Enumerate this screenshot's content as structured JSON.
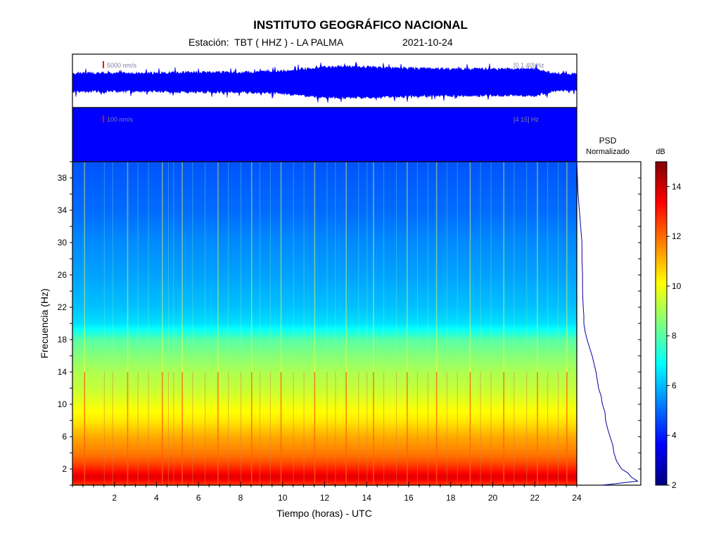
{
  "header": {
    "title": "INSTITUTO GEOGRÁFICO NACIONAL",
    "station_label": "Estación:",
    "station_value": "TBT ( HHZ ) - LA PALMA",
    "date": "2021-10-24"
  },
  "chart_data": [
    {
      "type": "line",
      "panel": "seismogram-broadband",
      "amplitude_scale": "5000 nm/s",
      "band": "[0.1 40] Hz",
      "x": [
        0,
        1,
        2,
        3,
        4,
        5,
        6,
        7,
        8,
        9,
        10,
        11,
        12,
        13,
        14,
        15,
        16,
        17,
        18,
        19,
        20,
        21,
        22,
        23,
        24
      ],
      "series": [
        {
          "values": [
            0.55,
            0.55,
            0.55,
            0.55,
            0.55,
            0.6,
            0.6,
            0.6,
            0.6,
            0.65,
            0.7,
            0.85,
            1.0,
            1.0,
            1.0,
            0.95,
            0.9,
            0.85,
            0.85,
            0.85,
            0.85,
            0.85,
            0.85,
            0.5,
            0.5
          ]
        }
      ]
    },
    {
      "type": "line",
      "panel": "seismogram-filtered",
      "amplitude_scale": "100 nm/s",
      "band": "[4 15] Hz",
      "x": [
        0,
        24
      ],
      "series": [
        {
          "values": [
            1.0,
            1.0
          ]
        }
      ]
    },
    {
      "type": "heatmap",
      "panel": "spectrogram",
      "xlabel": "Tiempo (horas) - UTC",
      "ylabel": "Frecuencia (Hz)",
      "xlim": [
        0,
        24
      ],
      "ylim": [
        0,
        40
      ],
      "x_ticks": [
        "2",
        "4",
        "6",
        "8",
        "10",
        "12",
        "14",
        "16",
        "18",
        "20",
        "22",
        "24"
      ],
      "y_ticks": [
        "2",
        "6",
        "10",
        "14",
        "18",
        "22",
        "26",
        "30",
        "34",
        "38"
      ],
      "profile": {
        "frequency_hz": [
          0,
          1,
          2,
          3,
          4,
          6,
          8,
          10,
          12,
          14,
          16,
          18,
          19,
          20,
          22,
          26,
          30,
          34,
          38,
          40
        ],
        "level_db": [
          12.5,
          13.8,
          13,
          12.3,
          11.8,
          11.2,
          10.4,
          9.9,
          9.4,
          9.1,
          8.6,
          8.0,
          7.2,
          6.5,
          6.1,
          5.7,
          5.4,
          5.0,
          4.8,
          4.7
        ]
      },
      "event_hours": [
        0.55,
        1.5,
        1.9,
        2.6,
        3.1,
        3.6,
        4.25,
        4.55,
        4.8,
        5.2,
        5.7,
        6.3,
        6.9,
        7.4,
        8.0,
        8.5,
        8.9,
        9.4,
        9.9,
        10.5,
        11.0,
        11.5,
        12.1,
        12.5,
        13.0,
        13.6,
        14.0,
        14.3,
        14.8,
        15.4,
        15.9,
        16.4,
        16.9,
        17.3,
        17.8,
        18.3,
        18.9,
        19.4,
        19.9,
        20.5,
        21.0,
        21.6,
        22.1,
        22.6,
        23.1,
        23.5
      ]
    },
    {
      "type": "line",
      "panel": "psd",
      "title": "PSD\nNormalizado",
      "frequency_hz": [
        0,
        0.5,
        1,
        1.5,
        2,
        3,
        4,
        5,
        6,
        7,
        8,
        9,
        10,
        11,
        12,
        13,
        14,
        15,
        16,
        17,
        18,
        19,
        20,
        21,
        22,
        24,
        26,
        28,
        30,
        32,
        34,
        36,
        38,
        40
      ],
      "values": [
        0.4,
        0.95,
        0.85,
        0.8,
        0.7,
        0.62,
        0.58,
        0.56,
        0.52,
        0.48,
        0.45,
        0.44,
        0.4,
        0.38,
        0.34,
        0.32,
        0.3,
        0.27,
        0.24,
        0.2,
        0.16,
        0.13,
        0.11,
        0.11,
        0.1,
        0.09,
        0.09,
        0.08,
        0.08,
        0.06,
        0.04,
        0.02,
        0.01,
        0.0
      ]
    },
    {
      "type": "colorbar",
      "label": "dB",
      "range": [
        2,
        15
      ],
      "ticks": [
        "2",
        "4",
        "6",
        "8",
        "10",
        "12",
        "14"
      ],
      "colors": [
        "#00007f",
        "#0000ff",
        "#007fff",
        "#00ffff",
        "#7fff7f",
        "#ffff00",
        "#ff7f00",
        "#ff0000",
        "#7f0000"
      ]
    }
  ]
}
